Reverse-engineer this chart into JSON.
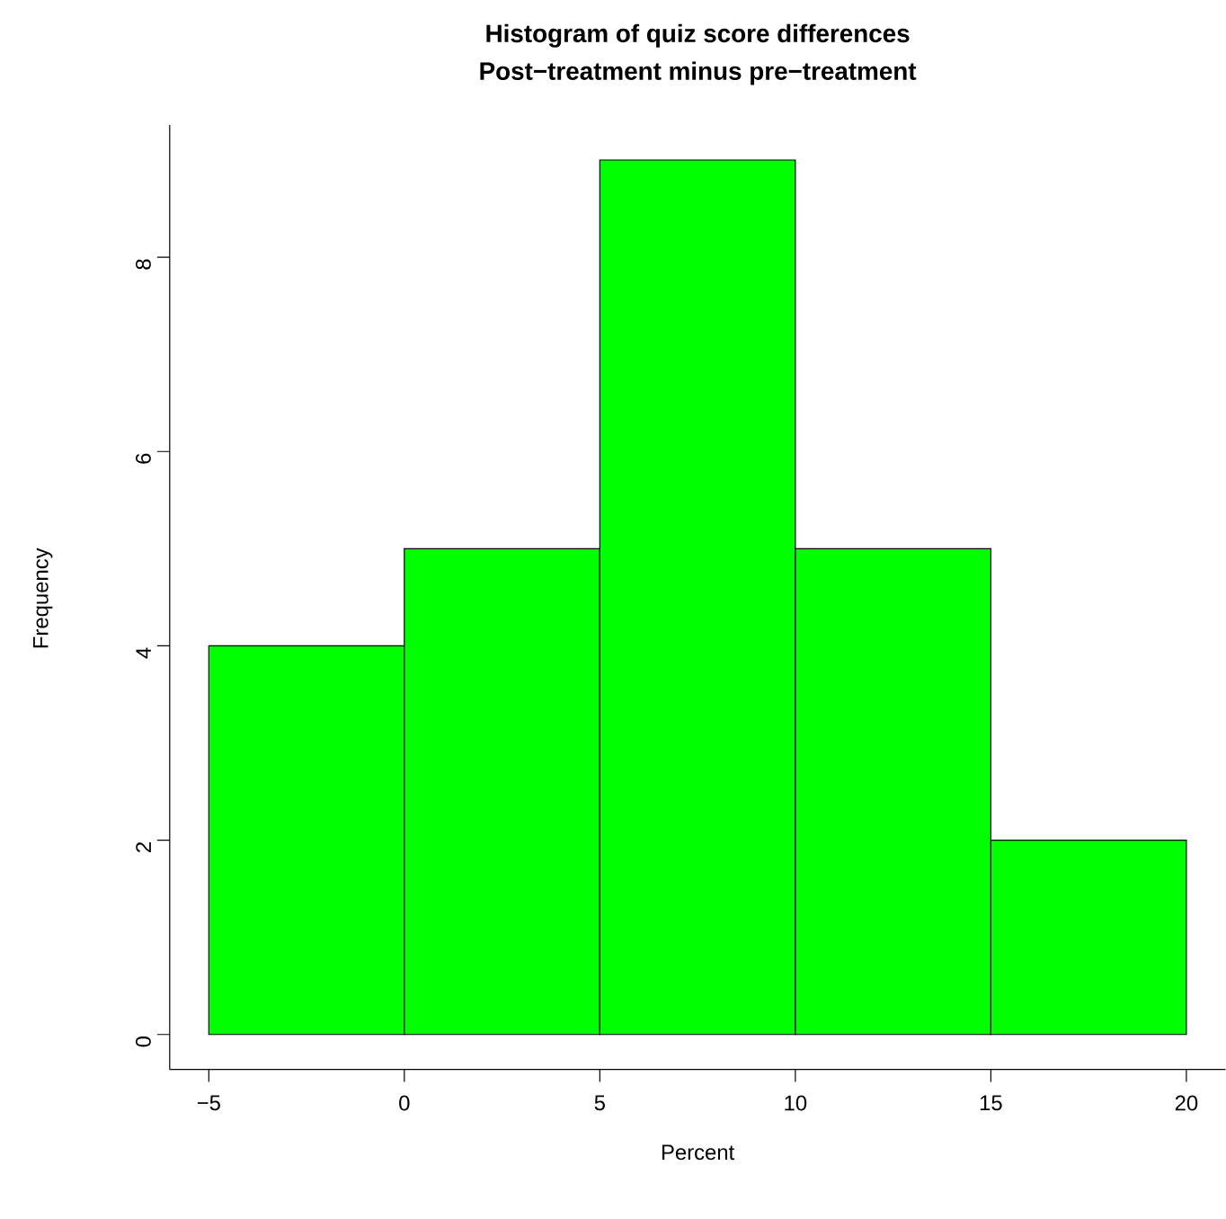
{
  "chart_data": {
    "type": "histogram",
    "title": "Histogram of quiz score differences",
    "subtitle": "Post−treatment minus pre−treatment",
    "xlabel": "Percent",
    "ylabel": "Frequency",
    "bins": [
      -5,
      0,
      5,
      10,
      15,
      20
    ],
    "values": [
      4,
      5,
      9,
      5,
      2
    ],
    "color": "#00ff00",
    "xlim": [
      -6,
      21
    ],
    "ylim": [
      -0.36,
      9.36
    ],
    "xticks": [
      {
        "value": -5,
        "label": "−5"
      },
      0,
      5,
      10,
      15,
      20
    ],
    "yticks": [
      0,
      2,
      4,
      6,
      8
    ]
  }
}
